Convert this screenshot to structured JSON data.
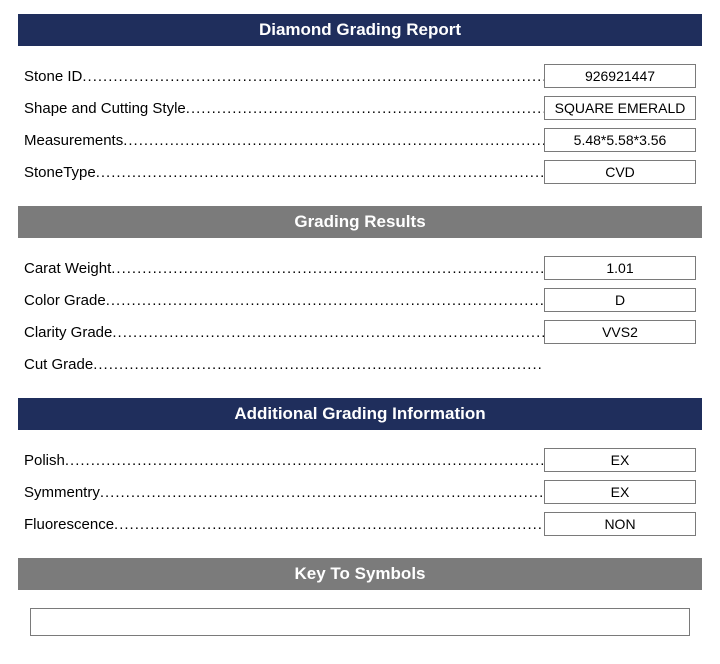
{
  "colors": {
    "primary_header_bg": "#1f2e5c",
    "secondary_header_bg": "#7b7b7b",
    "header_text": "#ffffff",
    "box_border": "#7a7a7a",
    "body_text": "#000000",
    "page_bg": "#ffffff"
  },
  "sections": [
    {
      "title": "Diamond Grading Report",
      "style": "primary",
      "rows": [
        {
          "label": "Stone ID",
          "value": "926921447"
        },
        {
          "label": "Shape and Cutting Style",
          "value": "SQUARE EMERALD"
        },
        {
          "label": "Measurements",
          "value": "5.48*5.58*3.56"
        },
        {
          "label": "StoneType",
          "value": "CVD"
        }
      ]
    },
    {
      "title": "Grading Results",
      "style": "secondary",
      "rows": [
        {
          "label": "Carat Weight",
          "value": "1.01"
        },
        {
          "label": "Color Grade",
          "value": "D"
        },
        {
          "label": "Clarity Grade",
          "value": "VVS2"
        },
        {
          "label": "Cut Grade",
          "value": ""
        }
      ]
    },
    {
      "title": "Additional Grading Information",
      "style": "primary",
      "rows": [
        {
          "label": "Polish",
          "value": "EX"
        },
        {
          "label": "Symmentry",
          "value": "EX"
        },
        {
          "label": "Fluorescence",
          "value": "NON"
        }
      ]
    },
    {
      "title": "Key To Symbols",
      "style": "secondary",
      "rows": []
    }
  ]
}
